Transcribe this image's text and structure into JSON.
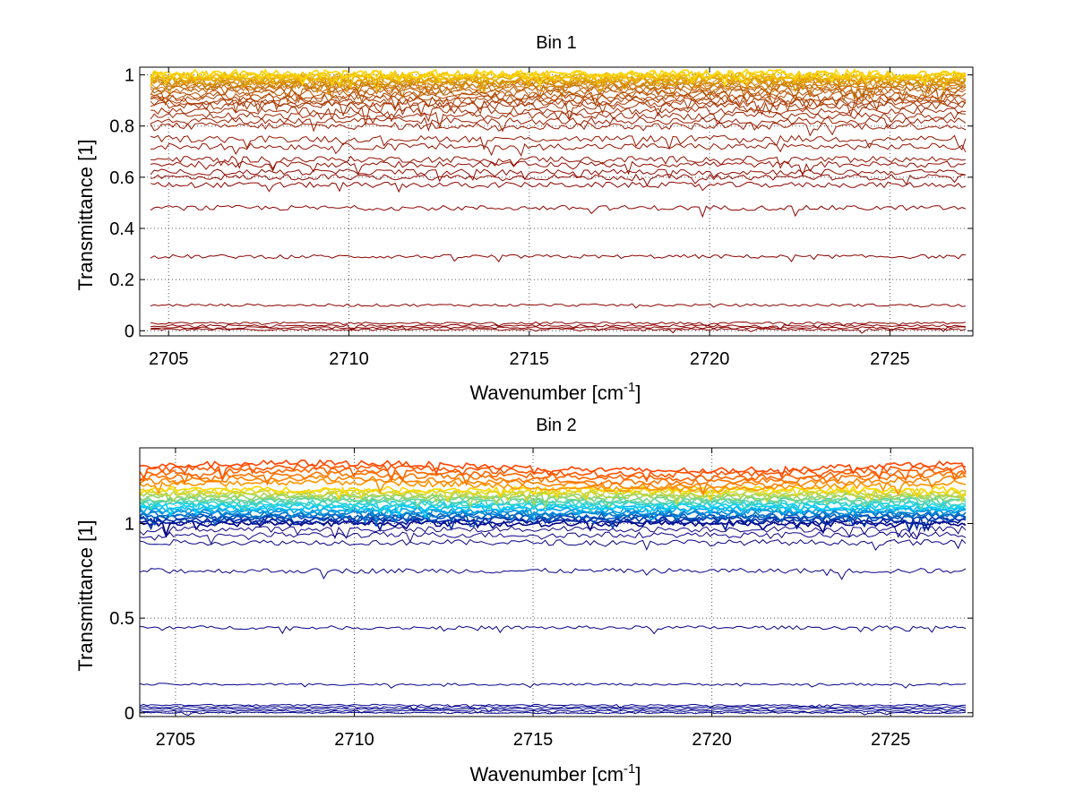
{
  "chart_data": [
    {
      "type": "line",
      "title": "Bin 1",
      "xlabel": "Wavenumber [cm",
      "xlabel_superscript": "-1",
      "xlabel_suffix": "]",
      "ylabel": "Transmittance [1]",
      "xlim": [
        2704.2,
        2727.3
      ],
      "ylim": [
        -0.02,
        1.03
      ],
      "xticks": [
        2705,
        2710,
        2715,
        2720,
        2725
      ],
      "xtick_labels": [
        "2705",
        "2710",
        "2715",
        "2720",
        "2725"
      ],
      "yticks": [
        0,
        0.2,
        0.4,
        0.6,
        0.8,
        1
      ],
      "ytick_labels": [
        "0",
        "0.2",
        "0.4",
        "0.6",
        "0.8",
        "1"
      ],
      "grid": true,
      "baseline_levels": [
        0.005,
        0.012,
        0.02,
        0.03,
        0.1,
        0.29,
        0.48,
        0.57,
        0.6,
        0.62,
        0.65,
        0.67,
        0.72,
        0.75,
        0.8,
        0.82,
        0.84,
        0.86,
        0.88,
        0.89,
        0.9,
        0.91,
        0.92,
        0.93,
        0.94,
        0.95,
        0.955,
        0.96,
        0.965,
        0.97,
        0.975,
        0.98,
        0.985,
        0.99,
        0.995,
        1.0,
        1.005
      ],
      "color_range": [
        "#8b0000",
        "#ffd700"
      ]
    },
    {
      "type": "line",
      "title": "Bin 2",
      "xlabel": "Wavenumber [cm",
      "xlabel_superscript": "-1",
      "xlabel_suffix": "]",
      "ylabel": "Transmittance [1]",
      "xlim": [
        2704.0,
        2727.3
      ],
      "ylim": [
        -0.02,
        1.4
      ],
      "xticks": [
        2705,
        2710,
        2715,
        2720,
        2725
      ],
      "xtick_labels": [
        "2705",
        "2710",
        "2715",
        "2720",
        "2725"
      ],
      "yticks": [
        0,
        0.5,
        1
      ],
      "ytick_labels": [
        "0",
        "0.5",
        "1"
      ],
      "grid": true,
      "baseline_levels": [
        0.0,
        0.01,
        0.02,
        0.03,
        0.04,
        0.15,
        0.45,
        0.75,
        0.9,
        0.94,
        0.97,
        1.0,
        1.01,
        1.02,
        1.03,
        1.04,
        1.05,
        1.06,
        1.07,
        1.08,
        1.09,
        1.1,
        1.11,
        1.12,
        1.13,
        1.14,
        1.15,
        1.16,
        1.17,
        1.18,
        1.2,
        1.22,
        1.24,
        1.26,
        1.28,
        1.3
      ],
      "color_range": [
        "#00008b",
        "#ff4500"
      ]
    }
  ]
}
